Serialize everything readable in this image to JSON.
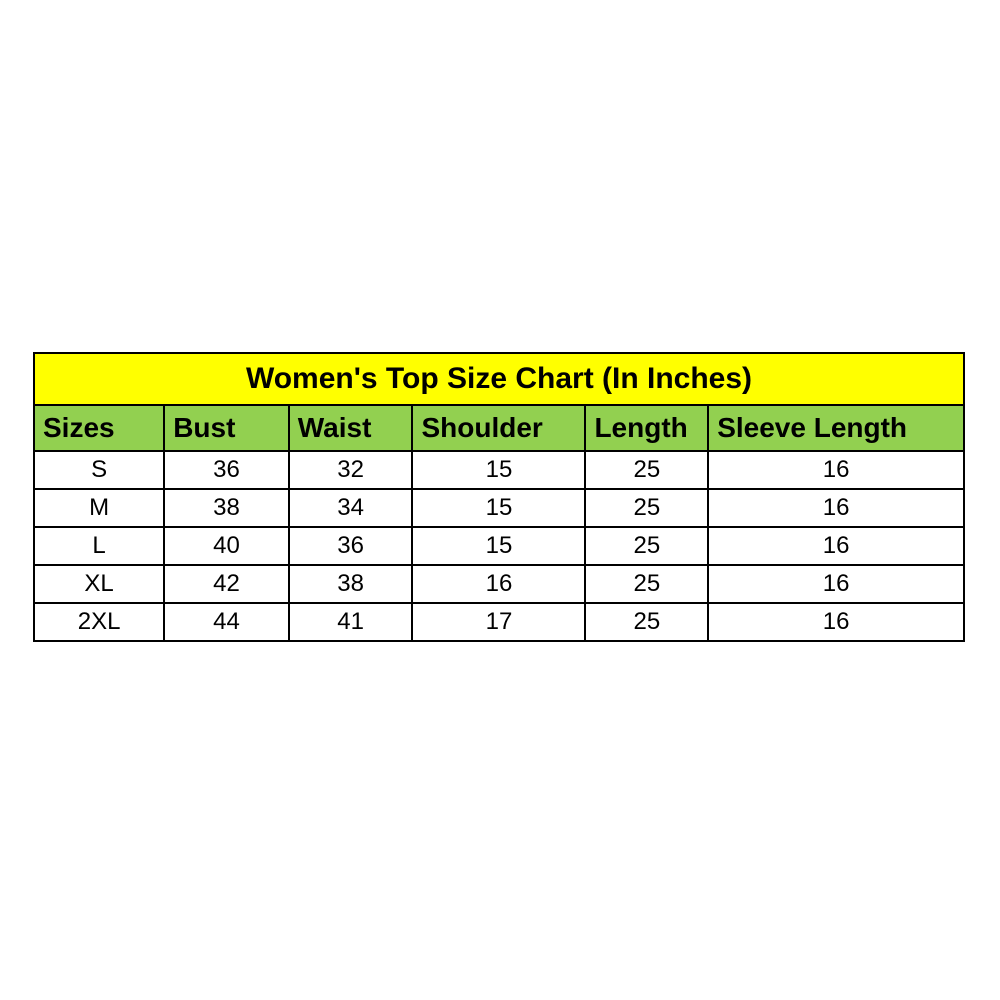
{
  "chart_data": {
    "type": "table",
    "title": "Women's Top Size Chart (In Inches)",
    "columns": [
      "Sizes",
      "Bust",
      "Waist",
      "Shoulder",
      "Length",
      "Sleeve Length"
    ],
    "rows": [
      [
        "S",
        "36",
        "32",
        "15",
        "25",
        "16"
      ],
      [
        "M",
        "38",
        "34",
        "15",
        "25",
        "16"
      ],
      [
        "L",
        "40",
        "36",
        "15",
        "25",
        "16"
      ],
      [
        "XL",
        "42",
        "38",
        "16",
        "25",
        "16"
      ],
      [
        "2XL",
        "44",
        "41",
        "17",
        "25",
        "16"
      ]
    ]
  },
  "colors": {
    "title_bg": "#FFFF00",
    "header_bg": "#92D050",
    "row_bg": "#FFFFFF",
    "border": "#000000",
    "text": "#000000"
  }
}
